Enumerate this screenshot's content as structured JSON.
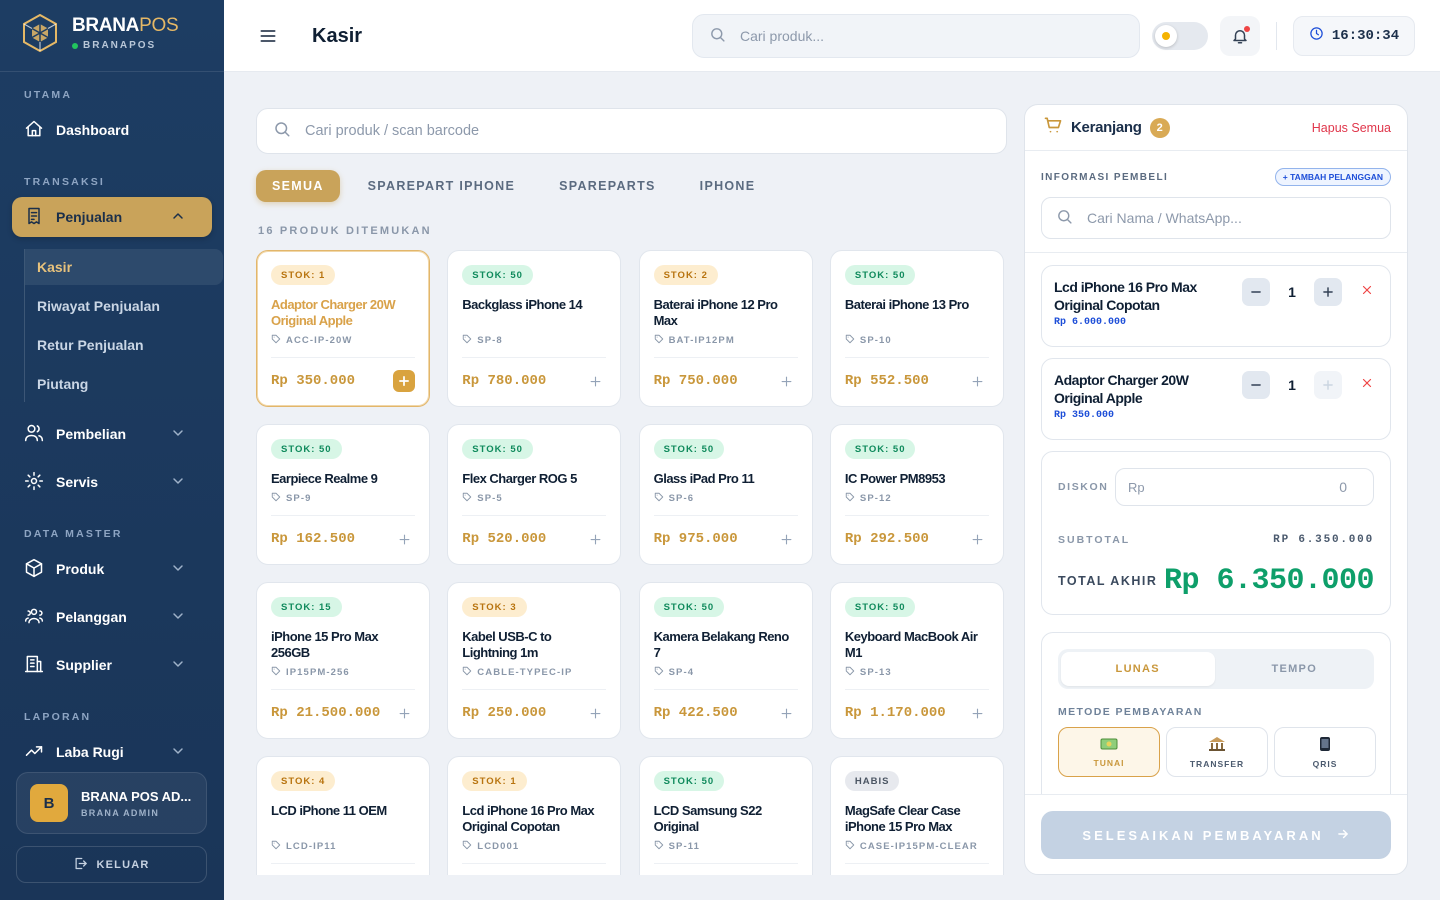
{
  "sidebar": {
    "brand": {
      "name_a": "BRANA",
      "name_b": "POS",
      "subtitle": "BRANAPOS"
    },
    "sections": [
      {
        "title": "UTAMA",
        "items": [
          {
            "label": "Dashboard"
          }
        ]
      },
      {
        "title": "TRANSAKSI",
        "items": [
          {
            "label": "Penjualan",
            "active": true,
            "expandable": true,
            "expanded": true,
            "children": [
              {
                "label": "Kasir",
                "active": true
              },
              {
                "label": "Riwayat Penjualan"
              },
              {
                "label": "Retur Penjualan"
              },
              {
                "label": "Piutang"
              }
            ]
          },
          {
            "label": "Pembelian",
            "expandable": true
          },
          {
            "label": "Servis",
            "expandable": true
          }
        ]
      },
      {
        "title": "DATA MASTER",
        "items": [
          {
            "label": "Produk",
            "expandable": true
          },
          {
            "label": "Pelanggan",
            "expandable": true
          },
          {
            "label": "Supplier",
            "expandable": true
          }
        ]
      },
      {
        "title": "LAPORAN",
        "items": [
          {
            "label": "Laba Rugi",
            "expandable": true
          }
        ]
      }
    ],
    "user": {
      "initial": "B",
      "name": "BRANA POS AD...",
      "role": "BRANA ADMIN"
    },
    "logout": "KELUAR"
  },
  "header": {
    "title": "Kasir",
    "search_placeholder": "Cari produk...",
    "time": "16:30:34"
  },
  "catalog": {
    "search_placeholder": "Cari produk / scan barcode",
    "tabs": [
      "SEMUA",
      "SPAREPART IPHONE",
      "SPAREPARTS",
      "IPHONE"
    ],
    "active_tab": 0,
    "count_label": "16 PRODUK DITEMUKAN",
    "products": [
      {
        "stock": "STOK: 1",
        "name": "Adaptor Charger 20W Original Apple",
        "sku": "ACC-IP-20W",
        "price": "Rp 350.000",
        "badge_colors": [
          "#fdedcf",
          "#b8740f"
        ],
        "selected": true
      },
      {
        "stock": "STOK: 50",
        "name": "Backglass iPhone 14",
        "sku": "SP-8",
        "price": "Rp 780.000",
        "badge_colors": [
          "#d7f6e6",
          "#0f8a5c"
        ]
      },
      {
        "stock": "STOK: 2",
        "name": "Baterai iPhone 12 Pro Max",
        "sku": "BAT-IP12PM",
        "price": "Rp 750.000",
        "badge_colors": [
          "#fdedcf",
          "#b8740f"
        ]
      },
      {
        "stock": "STOK: 50",
        "name": "Baterai iPhone 13 Pro",
        "sku": "SP-10",
        "price": "Rp 552.500",
        "badge_colors": [
          "#d7f6e6",
          "#0f8a5c"
        ]
      },
      {
        "stock": "STOK: 50",
        "name": "Earpiece Realme 9",
        "sku": "SP-9",
        "price": "Rp 162.500",
        "badge_colors": [
          "#d7f6e6",
          "#0f8a5c"
        ]
      },
      {
        "stock": "STOK: 50",
        "name": "Flex Charger ROG 5",
        "sku": "SP-5",
        "price": "Rp 520.000",
        "badge_colors": [
          "#d7f6e6",
          "#0f8a5c"
        ]
      },
      {
        "stock": "STOK: 50",
        "name": "Glass iPad Pro 11",
        "sku": "SP-6",
        "price": "Rp 975.000",
        "badge_colors": [
          "#d7f6e6",
          "#0f8a5c"
        ]
      },
      {
        "stock": "STOK: 50",
        "name": "IC Power PM8953",
        "sku": "SP-12",
        "price": "Rp 292.500",
        "badge_colors": [
          "#d7f6e6",
          "#0f8a5c"
        ]
      },
      {
        "stock": "STOK: 15",
        "name": "iPhone 15 Pro Max 256GB",
        "sku": "IP15PM-256",
        "price": "Rp 21.500.000",
        "badge_colors": [
          "#d7f6e6",
          "#0f8a5c"
        ]
      },
      {
        "stock": "STOK: 3",
        "name": "Kabel USB-C to Lightning 1m",
        "sku": "CABLE-TYPEC-IP",
        "price": "Rp 250.000",
        "badge_colors": [
          "#fdedcf",
          "#b8740f"
        ]
      },
      {
        "stock": "STOK: 50",
        "name": "Kamera Belakang Reno 7",
        "sku": "SP-4",
        "price": "Rp 422.500",
        "badge_colors": [
          "#d7f6e6",
          "#0f8a5c"
        ]
      },
      {
        "stock": "STOK: 50",
        "name": "Keyboard MacBook Air M1",
        "sku": "SP-13",
        "price": "Rp 1.170.000",
        "badge_colors": [
          "#d7f6e6",
          "#0f8a5c"
        ]
      },
      {
        "stock": "STOK: 4",
        "name": "LCD iPhone 11 OEM",
        "sku": "LCD-IP11",
        "badge_colors": [
          "#fdedcf",
          "#b8740f"
        ]
      },
      {
        "stock": "STOK: 1",
        "name": "Lcd iPhone 16 Pro Max Original Copotan",
        "sku": "LCD001",
        "badge_colors": [
          "#fdedcf",
          "#b8740f"
        ]
      },
      {
        "stock": "STOK: 50",
        "name": "LCD Samsung S22 Original",
        "sku": "SP-11",
        "badge_colors": [
          "#d7f6e6",
          "#0f8a5c"
        ]
      },
      {
        "stock": "HABIS",
        "name": "MagSafe Clear Case iPhone 15 Pro Max",
        "sku": "CASE-IP15PM-CLEAR",
        "badge_colors": [
          "#e7e9ee",
          "#4b5563"
        ]
      }
    ]
  },
  "cart": {
    "title": "Keranjang",
    "count": 2,
    "clear": "Hapus Semua",
    "buyer_label": "INFORMASI PEMBELI",
    "add_customer": "+ TAMBAH PELANGGAN",
    "buyer_placeholder": "Cari Nama / WhatsApp...",
    "items": [
      {
        "name": "Lcd iPhone 16 Pro Max Original Copotan",
        "price": "Rp 6.000.000",
        "qty": 1,
        "plus_disabled": false
      },
      {
        "name": "Adaptor Charger 20W Original Apple",
        "price": "Rp 350.000",
        "qty": 1,
        "plus_disabled": true
      }
    ],
    "discount_label": "DISKON",
    "discount_prefix": "Rp",
    "discount_value": 0,
    "subtotal_label": "SUBTOTAL",
    "subtotal": "RP 6.350.000",
    "total_label": "TOTAL AKHIR",
    "total": "Rp 6.350.000",
    "payment_tabs": [
      "LUNAS",
      "TEMPO"
    ],
    "active_payment_tab": 0,
    "method_label": "METODE PEMBAYARAN",
    "methods": [
      "TUNAI",
      "TRANSFER",
      "QRIS"
    ],
    "active_method": 0,
    "submit": "SELESAIKAN PEMBAYARAN"
  }
}
